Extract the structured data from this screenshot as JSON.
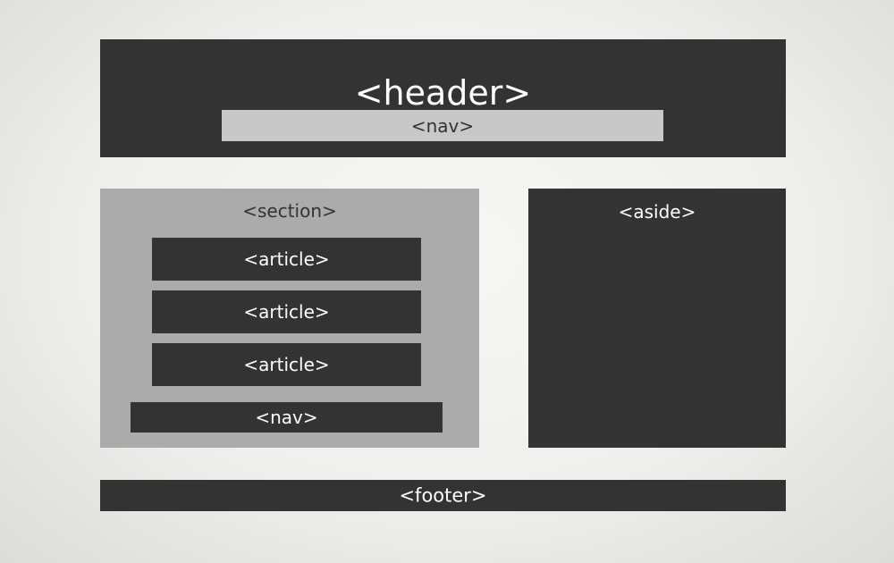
{
  "header": {
    "label": "<header>",
    "nav_label": "<nav>"
  },
  "section": {
    "label": "<section>",
    "articles": [
      {
        "label": "<article>"
      },
      {
        "label": "<article>"
      },
      {
        "label": "<article>"
      }
    ],
    "nav_label": "<nav>"
  },
  "aside": {
    "label": "<aside>"
  },
  "footer": {
    "label": "<footer>"
  },
  "colors": {
    "dark_block": "#333333",
    "light_block": "#c8c8c8",
    "section_block": "#ababab",
    "background": "#efefed"
  }
}
